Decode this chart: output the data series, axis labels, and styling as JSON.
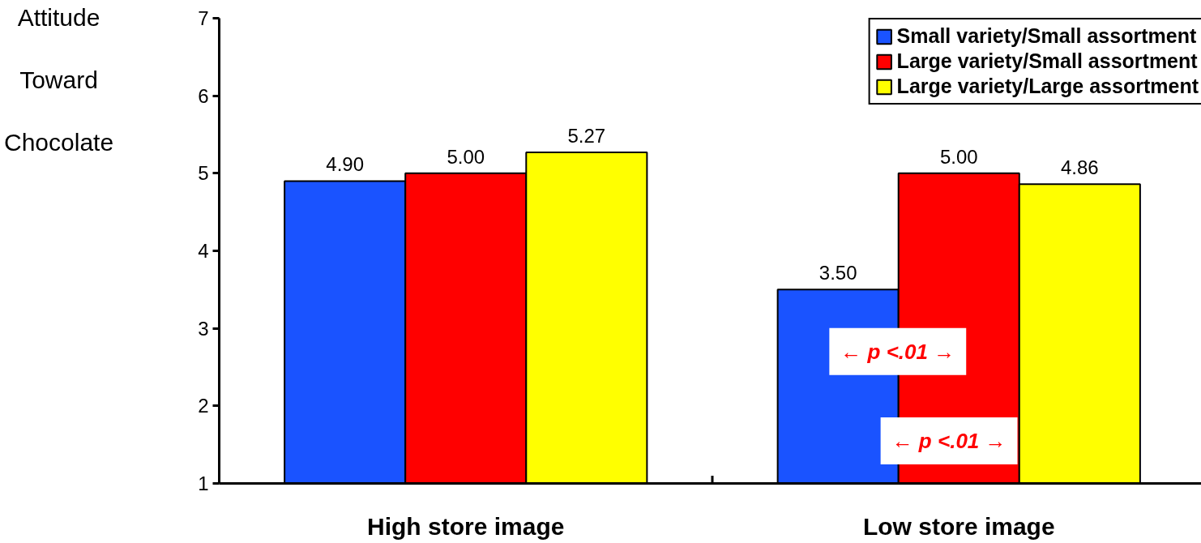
{
  "chart_data": {
    "type": "bar",
    "ylabel": "Attitude Toward Chocolate",
    "categories": [
      "High store image",
      "Low store image"
    ],
    "series": [
      {
        "name": "Small variety/Small assortment",
        "color": "#1a53ff",
        "values": [
          4.9,
          3.5
        ],
        "value_labels": [
          "4.90",
          "3.50"
        ]
      },
      {
        "name": "Large variety/Small assortment",
        "color": "#ff0000",
        "values": [
          5.0,
          5.0
        ],
        "value_labels": [
          "5.00",
          "5.00"
        ]
      },
      {
        "name": "Large variety/Large assortment",
        "color": "#ffff00",
        "values": [
          5.27,
          4.86
        ],
        "value_labels": [
          "5.27",
          "4.86"
        ]
      }
    ],
    "ylim": [
      1,
      7
    ],
    "yticks": [
      1,
      2,
      3,
      4,
      5,
      6,
      7
    ],
    "legend": "top right",
    "grid": false,
    "annotations": [
      "← p <.01 →",
      "← p <.01 →"
    ]
  }
}
